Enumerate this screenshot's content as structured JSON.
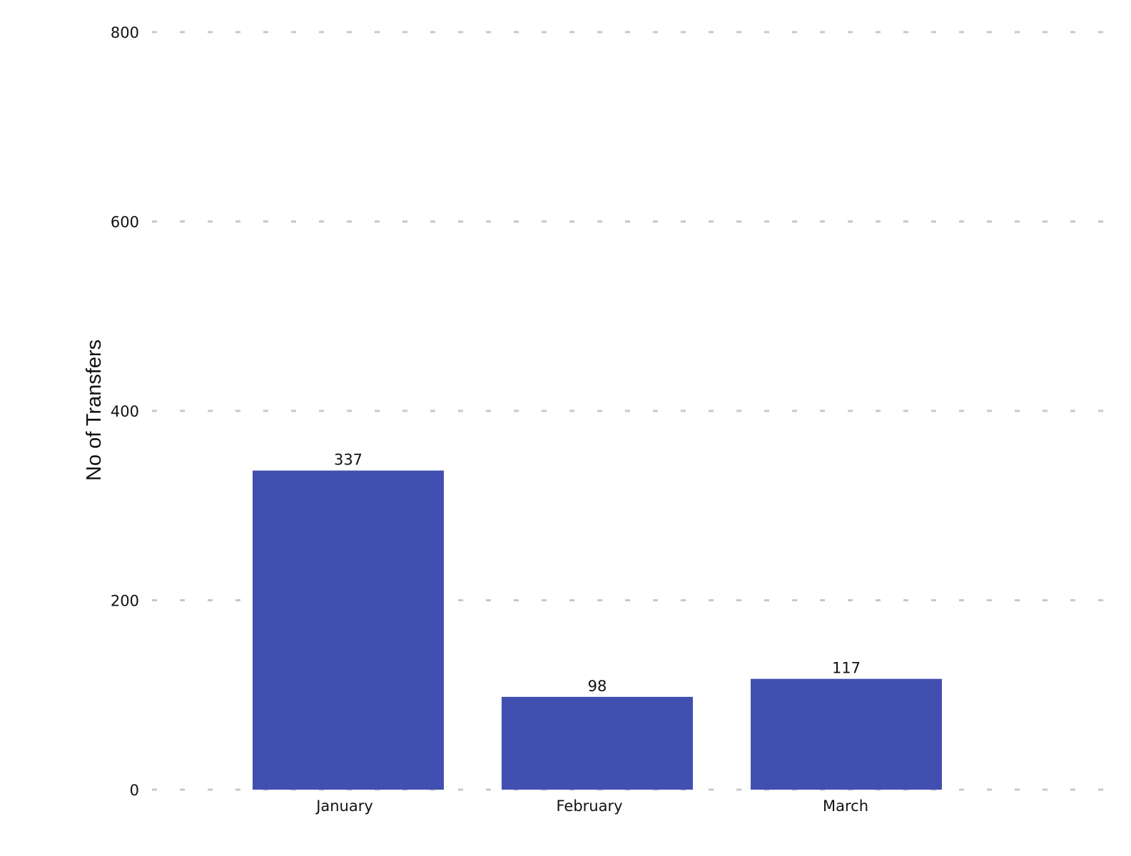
{
  "chart_data": {
    "type": "bar",
    "categories": [
      "January",
      "February",
      "March"
    ],
    "values": [
      337,
      98,
      117
    ],
    "data_labels": [
      "337",
      "98",
      "117"
    ],
    "title": "",
    "xlabel": "",
    "ylabel": "No of Transfers",
    "ylim": [
      0,
      800
    ],
    "yticks": [
      0,
      200,
      400,
      600,
      800
    ],
    "ytick_labels": [
      "0",
      "200",
      "400",
      "600",
      "800"
    ],
    "grid": "horizontal dashed",
    "legend": "none",
    "bar_color": "#4150b0",
    "grid_color": "#c8c8c8"
  }
}
